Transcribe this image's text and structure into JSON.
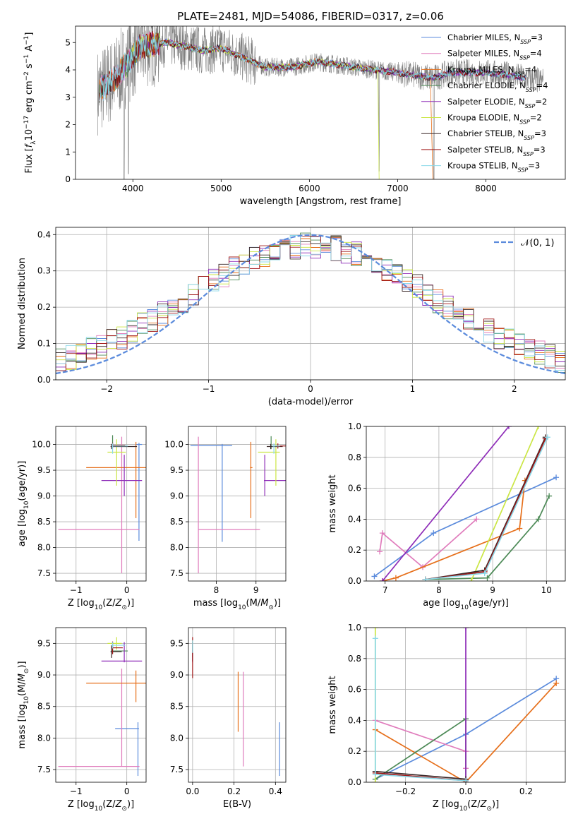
{
  "figure": {
    "title": "PLATE=2481, MJD=54086, FIBERID=0317, z=0.06",
    "colors": {
      "data_gray": "#808080",
      "Chabrier MILES": "#5b8bdc",
      "Salpeter MILES": "#e07cbc",
      "Kroupa MILES": "#e66f1a",
      "Chabrier ELODIE": "#4d8a57",
      "Salpeter ELODIE": "#8e2cb8",
      "Kroupa ELODIE": "#cbe645",
      "Chabrier STELIB": "#3a2828",
      "Salpeter STELIB": "#a01818",
      "Kroupa STELIB": "#8ad8e8",
      "normal": "#5b8bdc"
    }
  },
  "chart_data": [
    {
      "id": "spectrum",
      "type": "line",
      "title": "PLATE=2481, MJD=54086, FIBERID=0317, z=0.06",
      "xlabel": "wavelength [Angstrom, rest frame]",
      "ylabel": "Flux [f_λ10^-17 erg cm^-2 s^-1 A^-1]",
      "xlim": [
        3350,
        8900
      ],
      "ylim": [
        0,
        5.6
      ],
      "xticks": [
        4000,
        5000,
        6000,
        7000,
        8000
      ],
      "yticks": [
        0,
        1,
        2,
        3,
        4,
        5
      ],
      "legend_position": "top-right",
      "series": [
        {
          "name": "Chabrier MILES",
          "nssp": 3
        },
        {
          "name": "Salpeter MILES",
          "nssp": 4
        },
        {
          "name": "Kroupa MILES",
          "nssp": 4
        },
        {
          "name": "Chabrier ELODIE",
          "nssp": 4
        },
        {
          "name": "Salpeter ELODIE",
          "nssp": 2
        },
        {
          "name": "Kroupa ELODIE",
          "nssp": 2
        },
        {
          "name": "Chabrier STELIB",
          "nssp": 3
        },
        {
          "name": "Salpeter STELIB",
          "nssp": 3
        },
        {
          "name": "Kroupa STELIB",
          "nssp": 3
        }
      ],
      "continuum_points": [
        [
          3600,
          3.2
        ],
        [
          3800,
          3.7
        ],
        [
          3950,
          4.3
        ],
        [
          4100,
          4.9
        ],
        [
          4400,
          5.0
        ],
        [
          4800,
          4.7
        ],
        [
          5000,
          4.8
        ],
        [
          5500,
          4.1
        ],
        [
          5800,
          4.1
        ],
        [
          6100,
          4.3
        ],
        [
          6500,
          4.1
        ],
        [
          7000,
          3.9
        ],
        [
          7400,
          3.7
        ],
        [
          7600,
          3.9
        ],
        [
          8000,
          3.9
        ],
        [
          8300,
          3.8
        ],
        [
          8600,
          3.6
        ]
      ]
    },
    {
      "id": "residuals",
      "type": "line",
      "xlabel": "(data-model)/error",
      "ylabel": "Normed distribution",
      "xlim": [
        -2.5,
        2.5
      ],
      "ylim": [
        0,
        0.42
      ],
      "xticks": [
        -2,
        -1,
        0,
        1,
        2
      ],
      "yticks": [
        0.0,
        0.1,
        0.2,
        0.3,
        0.4
      ],
      "legend": "𝒩(0, 1)",
      "legend_position": "top-right",
      "histogram_bin_width": 0.1,
      "series": [
        {
          "name": "𝒩(0, 1)",
          "mean": 0,
          "sigma": 1
        }
      ]
    },
    {
      "id": "age_vs_Z",
      "type": "scatter",
      "xlabel": "Z [log10(Z/Z⊙)]",
      "ylabel": "age  [log10(age/yr)]",
      "xlim": [
        -1.4,
        0.38
      ],
      "ylim": [
        7.35,
        10.35
      ],
      "xticks": [
        -1,
        0
      ],
      "yticks": [
        7.5,
        8.0,
        8.5,
        9.0,
        9.5,
        10.0
      ],
      "points": [
        {
          "model": "Chabrier MILES",
          "x": 0.24,
          "xerr": [
            0.06,
            0.06
          ],
          "y": 10.0,
          "yerr": [
            1.87,
            0.03
          ]
        },
        {
          "model": "Salpeter MILES",
          "x": -0.1,
          "xerr": [
            1.25,
            0.35
          ],
          "y": 8.35,
          "yerr": [
            0.85,
            1.8
          ]
        },
        {
          "model": "Kroupa MILES",
          "x": 0.18,
          "xerr": [
            0.98,
            0.34
          ],
          "y": 9.55,
          "yerr": [
            0.98,
            0.5
          ]
        },
        {
          "model": "Chabrier ELODIE",
          "x": -0.28,
          "xerr": [
            0.02,
            0.02
          ],
          "y": 9.98,
          "yerr": [
            0.03,
            0.2
          ]
        },
        {
          "model": "Salpeter ELODIE",
          "x": -0.05,
          "xerr": [
            0.45,
            0.35
          ],
          "y": 9.3,
          "yerr": [
            0.3,
            0.5
          ]
        },
        {
          "model": "Kroupa ELODIE",
          "x": -0.2,
          "xerr": [
            0.18,
            0.18
          ],
          "y": 9.85,
          "yerr": [
            0.65,
            0.25
          ]
        },
        {
          "model": "Chabrier STELIB",
          "x": -0.3,
          "xerr": [
            0.02,
            0.5
          ],
          "y": 9.96,
          "yerr": [
            0.05,
            0.05
          ]
        },
        {
          "model": "Salpeter STELIB",
          "x": -0.28,
          "xerr": [
            0.02,
            0.25
          ],
          "y": 9.98,
          "yerr": [
            0.05,
            0.05
          ]
        },
        {
          "model": "Kroupa STELIB",
          "x": -0.28,
          "xerr": [
            0.02,
            0.3
          ],
          "y": 9.97,
          "yerr": [
            0.15,
            0.05
          ]
        }
      ]
    },
    {
      "id": "age_vs_mass",
      "type": "scatter",
      "xlabel": "mass [log10(M/M⊙)]",
      "ylabel": "",
      "xlim": [
        7.3,
        9.75
      ],
      "ylim": [
        7.35,
        10.35
      ],
      "xticks": [
        8,
        9
      ],
      "yticks": [
        7.5,
        8.0,
        8.5,
        9.0,
        9.5,
        10.0
      ],
      "points": [
        {
          "model": "Chabrier MILES",
          "x": 8.15,
          "xerr": [
            0.8,
            0.25
          ],
          "y": 9.98,
          "yerr": [
            1.87,
            0.03
          ]
        },
        {
          "model": "Salpeter MILES",
          "x": 7.55,
          "xerr": [
            0.0,
            1.55
          ],
          "y": 8.35,
          "yerr": [
            0.85,
            1.8
          ]
        },
        {
          "model": "Kroupa MILES",
          "x": 8.87,
          "xerr": [
            0.02,
            0.04
          ],
          "y": 9.55,
          "yerr": [
            0.98,
            0.5
          ]
        },
        {
          "model": "Chabrier ELODIE",
          "x": 9.38,
          "xerr": [
            0.04,
            0.1
          ],
          "y": 9.96,
          "yerr": [
            0.05,
            0.2
          ]
        },
        {
          "model": "Salpeter ELODIE",
          "x": 9.22,
          "xerr": [
            0.02,
            0.6
          ],
          "y": 9.3,
          "yerr": [
            0.3,
            0.5
          ]
        },
        {
          "model": "Kroupa ELODIE",
          "x": 9.5,
          "xerr": [
            0.45,
            0.1
          ],
          "y": 9.85,
          "yerr": [
            0.65,
            0.25
          ]
        },
        {
          "model": "Chabrier STELIB",
          "x": 9.37,
          "xerr": [
            0.1,
            0.3
          ],
          "y": 9.96,
          "yerr": [
            0.05,
            0.05
          ]
        },
        {
          "model": "Salpeter STELIB",
          "x": 9.55,
          "xerr": [
            0.05,
            0.2
          ],
          "y": 9.97,
          "yerr": [
            0.05,
            0.05
          ]
        },
        {
          "model": "Kroupa STELIB",
          "x": 9.45,
          "xerr": [
            0.05,
            0.15
          ],
          "y": 9.97,
          "yerr": [
            0.15,
            0.05
          ]
        }
      ]
    },
    {
      "id": "massweight_vs_age",
      "type": "line",
      "xlabel": "age  [log10(age/yr)]",
      "ylabel": "mass weight",
      "xlim": [
        6.65,
        10.35
      ],
      "ylim": [
        0,
        1.0
      ],
      "xticks": [
        7,
        8,
        9,
        10
      ],
      "yticks": [
        0.0,
        0.2,
        0.4,
        0.6,
        0.8,
        1.0
      ],
      "series": [
        {
          "name": "Chabrier MILES",
          "x": [
            6.8,
            7.9,
            10.18
          ],
          "y": [
            0.03,
            0.31,
            0.67
          ]
        },
        {
          "name": "Salpeter MILES",
          "x": [
            6.9,
            6.95,
            7.7,
            8.7
          ],
          "y": [
            0.19,
            0.31,
            0.09,
            0.4
          ]
        },
        {
          "name": "Kroupa MILES",
          "x": [
            6.95,
            7.2,
            9.5,
            9.6
          ],
          "y": [
            0.0,
            0.02,
            0.34,
            0.65
          ]
        },
        {
          "name": "Chabrier ELODIE",
          "x": [
            7.75,
            8.9,
            9.85,
            10.05
          ],
          "y": [
            0.01,
            0.02,
            0.4,
            0.55
          ]
        },
        {
          "name": "Salpeter ELODIE",
          "x": [
            6.95,
            9.3
          ],
          "y": [
            0.0,
            1.0
          ]
        },
        {
          "name": "Kroupa ELODIE",
          "x": [
            8.6,
            9.85
          ],
          "y": [
            0.0,
            1.0
          ]
        },
        {
          "name": "Chabrier STELIB",
          "x": [
            7.75,
            8.85,
            9.98
          ],
          "y": [
            0.01,
            0.07,
            0.93
          ]
        },
        {
          "name": "Salpeter STELIB",
          "x": [
            7.75,
            8.85,
            9.98
          ],
          "y": [
            0.01,
            0.06,
            0.92
          ]
        },
        {
          "name": "Kroupa STELIB",
          "x": [
            7.75,
            8.85,
            10.02
          ],
          "y": [
            0.01,
            0.05,
            0.93
          ]
        }
      ]
    },
    {
      "id": "mass_vs_Z",
      "type": "scatter",
      "xlabel": "Z [log10(Z/Z⊙)]",
      "ylabel": "mass [log10(M/M⊙)]",
      "xlim": [
        -1.4,
        0.38
      ],
      "ylim": [
        7.3,
        9.75
      ],
      "xticks": [
        -1,
        0
      ],
      "yticks": [
        7.5,
        8.0,
        8.5,
        9.0,
        9.5
      ],
      "points": [
        {
          "model": "Chabrier MILES",
          "x": 0.22,
          "xerr": [
            0.45,
            0.02
          ],
          "y": 8.15,
          "yerr": [
            0.75,
            0.1
          ]
        },
        {
          "model": "Salpeter MILES",
          "x": -0.1,
          "xerr": [
            1.25,
            0.35
          ],
          "y": 7.55,
          "yerr": [
            0.0,
            1.55
          ]
        },
        {
          "model": "Kroupa MILES",
          "x": 0.18,
          "xerr": [
            0.98,
            0.34
          ],
          "y": 8.87,
          "yerr": [
            0.3,
            0.2
          ]
        },
        {
          "model": "Chabrier ELODIE",
          "x": -0.28,
          "xerr": [
            0.02,
            0.3
          ],
          "y": 9.38,
          "yerr": [
            0.04,
            0.1
          ]
        },
        {
          "model": "Salpeter ELODIE",
          "x": -0.05,
          "xerr": [
            0.45,
            0.35
          ],
          "y": 9.22,
          "yerr": [
            0.02,
            0.3
          ]
        },
        {
          "model": "Kroupa ELODIE",
          "x": -0.2,
          "xerr": [
            0.18,
            0.1
          ],
          "y": 9.5,
          "yerr": [
            0.1,
            0.1
          ]
        },
        {
          "model": "Chabrier STELIB",
          "x": -0.3,
          "xerr": [
            0.02,
            0.2
          ],
          "y": 9.37,
          "yerr": [
            0.1,
            0.1
          ]
        },
        {
          "model": "Salpeter STELIB",
          "x": -0.28,
          "xerr": [
            0.02,
            0.2
          ],
          "y": 9.43,
          "yerr": [
            0.1,
            0.1
          ]
        },
        {
          "model": "Kroupa STELIB",
          "x": -0.28,
          "xerr": [
            0.02,
            0.25
          ],
          "y": 9.47,
          "yerr": [
            0.05,
            0.05
          ]
        }
      ]
    },
    {
      "id": "mass_vs_ebv",
      "type": "scatter",
      "xlabel": "E(B-V)",
      "ylabel": "",
      "xlim": [
        -0.02,
        0.45
      ],
      "ylim": [
        7.3,
        9.75
      ],
      "xticks": [
        0.0,
        0.2,
        0.4
      ],
      "yticks": [
        7.5,
        8.0,
        8.5,
        9.0,
        9.5
      ],
      "points": [
        {
          "model": "Chabrier MILES",
          "x": 0.42,
          "y": 8.15,
          "yerr": [
            0.75,
            0.1
          ]
        },
        {
          "model": "Salpeter MILES",
          "x": 0.245,
          "y": 8.3,
          "yerr": [
            0.75,
            0.75
          ]
        },
        {
          "model": "Kroupa MILES",
          "x": 0.22,
          "y": 8.6,
          "yerr": [
            0.5,
            0.45
          ]
        },
        {
          "model": "Chabrier ELODIE",
          "x": 0.0,
          "y": 9.38,
          "yerr": [
            0.1,
            0.1
          ]
        },
        {
          "model": "Salpeter ELODIE",
          "x": 0.0,
          "y": 9.3,
          "yerr": [
            0.1,
            0.1
          ]
        },
        {
          "model": "Kroupa ELODIE",
          "x": 0.0,
          "y": 9.45,
          "yerr": [
            0.1,
            0.1
          ]
        },
        {
          "model": "Chabrier STELIB",
          "x": 0.0,
          "y": 9.37,
          "yerr": [
            0.15,
            0.15
          ]
        },
        {
          "model": "Salpeter STELIB",
          "x": 0.0,
          "y": 9.3,
          "yerr": [
            0.35,
            0.3
          ]
        },
        {
          "model": "Kroupa STELIB",
          "x": 0.0,
          "y": 9.45,
          "yerr": [
            0.1,
            0.1
          ]
        }
      ]
    },
    {
      "id": "massweight_vs_Z",
      "type": "line",
      "xlabel": "Z [log10(Z/Z⊙)]",
      "ylabel": "mass weight",
      "xlim": [
        -0.33,
        0.33
      ],
      "ylim": [
        0,
        1.0
      ],
      "xticks": [
        -0.2,
        0.0,
        0.2
      ],
      "yticks": [
        0.0,
        0.2,
        0.4,
        0.6,
        0.8,
        1.0
      ],
      "series": [
        {
          "name": "Chabrier MILES",
          "x": [
            -0.3,
            0.0,
            0.3
          ],
          "y": [
            0.02,
            0.31,
            0.67
          ]
        },
        {
          "name": "Salpeter MILES",
          "x": [
            -0.3,
            0.0,
            0.0
          ],
          "y": [
            0.4,
            0.2,
            0.09
          ]
        },
        {
          "name": "Kroupa MILES",
          "x": [
            -0.3,
            0.0,
            0.3
          ],
          "y": [
            0.34,
            0.0,
            0.64
          ]
        },
        {
          "name": "Chabrier ELODIE",
          "x": [
            -0.3,
            0.0,
            0.0
          ],
          "y": [
            0.02,
            0.41,
            0.0
          ]
        },
        {
          "name": "Salpeter ELODIE",
          "x": [
            0.0,
            0.0
          ],
          "y": [
            0.0,
            1.0
          ]
        },
        {
          "name": "Kroupa ELODIE",
          "x": [
            -0.3,
            -0.3
          ],
          "y": [
            0.0,
            1.0
          ]
        },
        {
          "name": "Chabrier STELIB",
          "x": [
            -0.3,
            0.0
          ],
          "y": [
            0.07,
            0.02
          ]
        },
        {
          "name": "Salpeter STELIB",
          "x": [
            -0.3,
            0.0
          ],
          "y": [
            0.06,
            0.01
          ]
        },
        {
          "name": "Kroupa STELIB",
          "x": [
            -0.3,
            -0.3,
            0.0
          ],
          "y": [
            0.93,
            0.05,
            0.01
          ]
        }
      ]
    }
  ]
}
